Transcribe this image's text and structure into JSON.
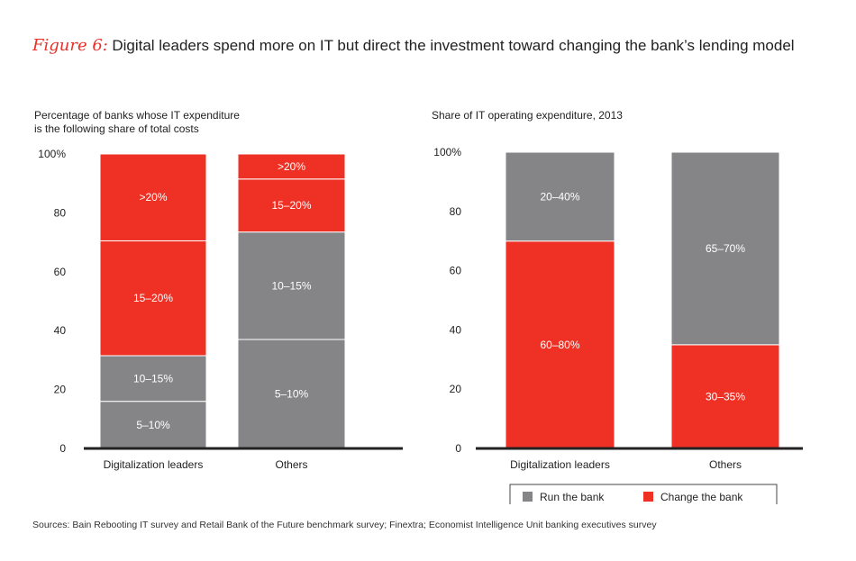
{
  "figure": {
    "label": "Figure 6:",
    "title": "Digital leaders spend more on IT but direct the investment toward changing the bank’s lending model"
  },
  "colors": {
    "red": "#ee3124",
    "grey": "#858588",
    "axis": "#222222"
  },
  "chart_data": [
    {
      "type": "bar",
      "stacked": true,
      "title": "Percentage of banks whose IT expenditure is the following share of total costs",
      "title_lines": [
        "Percentage of banks whose IT expenditure",
        "is the following share of total costs"
      ],
      "categories": [
        "Digitalization leaders",
        "Others"
      ],
      "ylim": [
        0,
        100
      ],
      "yticks": [
        "0",
        "20",
        "40",
        "60",
        "80",
        "100%"
      ],
      "series": [
        {
          "name": "5–10%",
          "label": "5–10%",
          "color": "grey",
          "values": [
            16,
            37
          ]
        },
        {
          "name": "10–15%",
          "label": "10–15%",
          "color": "grey",
          "values": [
            15.5,
            36.5
          ]
        },
        {
          "name": "15–20%",
          "label": "15–20%",
          "color": "red",
          "values": [
            39,
            18
          ]
        },
        {
          "name": ">20%",
          "label": ">20%",
          "color": "red",
          "values": [
            29.5,
            8.5
          ]
        }
      ]
    },
    {
      "type": "bar",
      "stacked": true,
      "title": "Share of IT operating expenditure, 2013",
      "title_lines": [
        "Share of IT operating expenditure, 2013"
      ],
      "categories": [
        "Digitalization leaders",
        "Others"
      ],
      "ylim": [
        0,
        100
      ],
      "yticks": [
        "0",
        "20",
        "40",
        "60",
        "80",
        "100%"
      ],
      "series": [
        {
          "name": "Change the bank",
          "color": "red",
          "values": [
            70,
            35
          ],
          "segment_labels": [
            "60–80%",
            "30–35%"
          ]
        },
        {
          "name": "Run the bank",
          "color": "grey",
          "values": [
            30,
            65
          ],
          "segment_labels": [
            "20–40%",
            "65–70%"
          ]
        }
      ],
      "legend": [
        {
          "label": "Run the bank",
          "color": "grey"
        },
        {
          "label": "Change the bank",
          "color": "red"
        }
      ],
      "legend_position": "bottom"
    }
  ],
  "source": "Sources: Bain Rebooting IT survey and Retail Bank of the Future benchmark survey; Finextra; Economist Intelligence Unit banking executives survey"
}
